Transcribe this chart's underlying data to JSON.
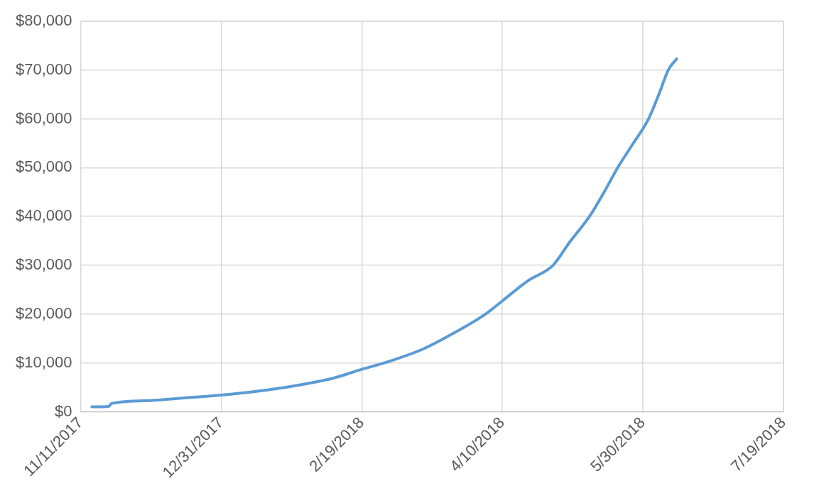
{
  "chart_data": {
    "type": "line",
    "x": [
      "2017-11-15",
      "2017-11-21",
      "2017-11-22",
      "2017-12-06",
      "2017-12-17",
      "2017-12-31",
      "2018-01-13",
      "2018-01-26",
      "2018-02-09",
      "2018-02-19",
      "2018-02-27",
      "2018-03-13",
      "2018-03-24",
      "2018-04-04",
      "2018-04-10",
      "2018-04-19",
      "2018-04-28",
      "2018-05-04",
      "2018-05-11",
      "2018-05-16",
      "2018-05-21",
      "2018-05-26",
      "2018-06-01",
      "2018-06-05",
      "2018-06-08",
      "2018-06-11"
    ],
    "series": [
      {
        "color": "#5b9bd5",
        "values": [
          1000,
          1100,
          1700,
          2300,
          2800,
          3400,
          4200,
          5300,
          6900,
          8700,
          10000,
          12900,
          16200,
          20000,
          22700,
          26800,
          30000,
          34800,
          40000,
          44800,
          50000,
          54500,
          60000,
          65500,
          70000,
          72300
        ]
      }
    ],
    "xlim": [
      "2017-11-11",
      "2018-07-19"
    ],
    "xticks": [
      {
        "value": "2017-11-11",
        "label": "11/11/2017"
      },
      {
        "value": "2017-12-31",
        "label": "12/31/2017"
      },
      {
        "value": "2018-02-19",
        "label": "2/19/2018"
      },
      {
        "value": "2018-04-10",
        "label": "4/10/2018"
      },
      {
        "value": "2018-05-30",
        "label": "5/30/2018"
      },
      {
        "value": "2018-07-19",
        "label": "7/19/2018"
      }
    ],
    "ylim": [
      0,
      80000
    ],
    "yticks": [
      {
        "value": 0,
        "label": "$0"
      },
      {
        "value": 10000,
        "label": "$10,000"
      },
      {
        "value": 20000,
        "label": "$20,000"
      },
      {
        "value": 30000,
        "label": "$30,000"
      },
      {
        "value": 40000,
        "label": "$40,000"
      },
      {
        "value": 50000,
        "label": "$50,000"
      },
      {
        "value": 60000,
        "label": "$60,000"
      },
      {
        "value": 70000,
        "label": "$70,000"
      },
      {
        "value": 80000,
        "label": "$80,000"
      }
    ],
    "grid": true,
    "legend": false,
    "marker": "none",
    "line_style": "solid"
  }
}
